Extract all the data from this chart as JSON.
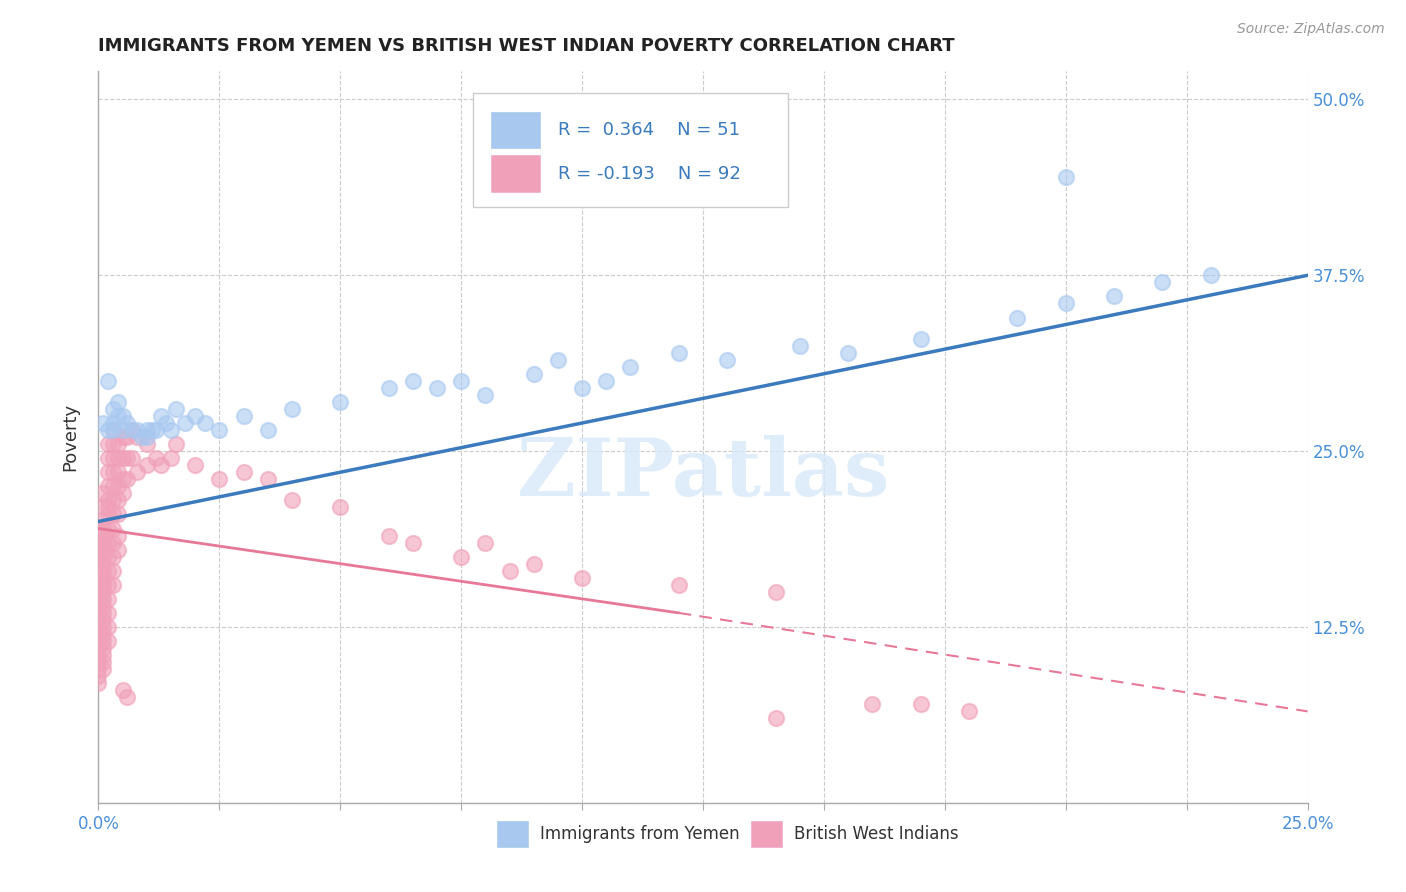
{
  "title": "IMMIGRANTS FROM YEMEN VS BRITISH WEST INDIAN POVERTY CORRELATION CHART",
  "source": "Source: ZipAtlas.com",
  "ylabel": "Poverty",
  "xlim": [
    0.0,
    0.25
  ],
  "ylim": [
    0.0,
    0.52
  ],
  "xticks": [
    0.0,
    0.025,
    0.05,
    0.075,
    0.1,
    0.125,
    0.15,
    0.175,
    0.2,
    0.225,
    0.25
  ],
  "xticklabels": [
    "0.0%",
    "",
    "",
    "",
    "",
    "",
    "",
    "",
    "",
    "",
    "25.0%"
  ],
  "ytick_positions": [
    0.0,
    0.125,
    0.25,
    0.375,
    0.5
  ],
  "yticklabels": [
    "",
    "12.5%",
    "25.0%",
    "37.5%",
    "50.0%"
  ],
  "color_yemen": "#A8C8F0",
  "color_bwi": "#F0A0B8",
  "color_line_yemen": "#3A7ABD",
  "color_line_bwi": "#E87898",
  "watermark": "ZIPatlas",
  "yemen_scatter": [
    [
      0.001,
      0.27
    ],
    [
      0.002,
      0.265
    ],
    [
      0.002,
      0.3
    ],
    [
      0.003,
      0.265
    ],
    [
      0.003,
      0.28
    ],
    [
      0.003,
      0.27
    ],
    [
      0.004,
      0.285
    ],
    [
      0.004,
      0.275
    ],
    [
      0.005,
      0.275
    ],
    [
      0.005,
      0.265
    ],
    [
      0.006,
      0.27
    ],
    [
      0.007,
      0.265
    ],
    [
      0.008,
      0.265
    ],
    [
      0.009,
      0.26
    ],
    [
      0.01,
      0.265
    ],
    [
      0.01,
      0.26
    ],
    [
      0.011,
      0.265
    ],
    [
      0.012,
      0.265
    ],
    [
      0.013,
      0.275
    ],
    [
      0.014,
      0.27
    ],
    [
      0.015,
      0.265
    ],
    [
      0.016,
      0.28
    ],
    [
      0.018,
      0.27
    ],
    [
      0.02,
      0.275
    ],
    [
      0.022,
      0.27
    ],
    [
      0.025,
      0.265
    ],
    [
      0.03,
      0.275
    ],
    [
      0.035,
      0.265
    ],
    [
      0.04,
      0.28
    ],
    [
      0.05,
      0.285
    ],
    [
      0.06,
      0.295
    ],
    [
      0.065,
      0.3
    ],
    [
      0.07,
      0.295
    ],
    [
      0.075,
      0.3
    ],
    [
      0.08,
      0.29
    ],
    [
      0.09,
      0.305
    ],
    [
      0.095,
      0.315
    ],
    [
      0.1,
      0.295
    ],
    [
      0.105,
      0.3
    ],
    [
      0.11,
      0.31
    ],
    [
      0.12,
      0.32
    ],
    [
      0.13,
      0.315
    ],
    [
      0.145,
      0.325
    ],
    [
      0.155,
      0.32
    ],
    [
      0.17,
      0.33
    ],
    [
      0.19,
      0.345
    ],
    [
      0.2,
      0.355
    ],
    [
      0.21,
      0.36
    ],
    [
      0.22,
      0.37
    ],
    [
      0.23,
      0.375
    ],
    [
      0.2,
      0.445
    ]
  ],
  "bwi_scatter": [
    [
      0.0,
      0.195
    ],
    [
      0.0,
      0.185
    ],
    [
      0.0,
      0.175
    ],
    [
      0.0,
      0.165
    ],
    [
      0.0,
      0.16
    ],
    [
      0.0,
      0.155
    ],
    [
      0.0,
      0.15
    ],
    [
      0.0,
      0.145
    ],
    [
      0.0,
      0.14
    ],
    [
      0.0,
      0.135
    ],
    [
      0.0,
      0.13
    ],
    [
      0.0,
      0.125
    ],
    [
      0.0,
      0.12
    ],
    [
      0.0,
      0.115
    ],
    [
      0.0,
      0.11
    ],
    [
      0.0,
      0.105
    ],
    [
      0.0,
      0.1
    ],
    [
      0.0,
      0.095
    ],
    [
      0.0,
      0.09
    ],
    [
      0.0,
      0.085
    ],
    [
      0.001,
      0.22
    ],
    [
      0.001,
      0.21
    ],
    [
      0.001,
      0.2
    ],
    [
      0.001,
      0.195
    ],
    [
      0.001,
      0.19
    ],
    [
      0.001,
      0.185
    ],
    [
      0.001,
      0.18
    ],
    [
      0.001,
      0.175
    ],
    [
      0.001,
      0.17
    ],
    [
      0.001,
      0.165
    ],
    [
      0.001,
      0.16
    ],
    [
      0.001,
      0.155
    ],
    [
      0.001,
      0.15
    ],
    [
      0.001,
      0.145
    ],
    [
      0.001,
      0.14
    ],
    [
      0.001,
      0.135
    ],
    [
      0.001,
      0.13
    ],
    [
      0.001,
      0.125
    ],
    [
      0.001,
      0.12
    ],
    [
      0.001,
      0.115
    ],
    [
      0.001,
      0.11
    ],
    [
      0.001,
      0.105
    ],
    [
      0.001,
      0.1
    ],
    [
      0.001,
      0.095
    ],
    [
      0.002,
      0.255
    ],
    [
      0.002,
      0.245
    ],
    [
      0.002,
      0.235
    ],
    [
      0.002,
      0.225
    ],
    [
      0.002,
      0.215
    ],
    [
      0.002,
      0.21
    ],
    [
      0.002,
      0.205
    ],
    [
      0.002,
      0.195
    ],
    [
      0.002,
      0.185
    ],
    [
      0.002,
      0.175
    ],
    [
      0.002,
      0.165
    ],
    [
      0.002,
      0.155
    ],
    [
      0.002,
      0.145
    ],
    [
      0.002,
      0.135
    ],
    [
      0.002,
      0.125
    ],
    [
      0.002,
      0.115
    ],
    [
      0.003,
      0.265
    ],
    [
      0.003,
      0.255
    ],
    [
      0.003,
      0.245
    ],
    [
      0.003,
      0.235
    ],
    [
      0.003,
      0.225
    ],
    [
      0.003,
      0.215
    ],
    [
      0.003,
      0.205
    ],
    [
      0.003,
      0.195
    ],
    [
      0.003,
      0.185
    ],
    [
      0.003,
      0.175
    ],
    [
      0.003,
      0.165
    ],
    [
      0.003,
      0.155
    ],
    [
      0.004,
      0.255
    ],
    [
      0.004,
      0.245
    ],
    [
      0.004,
      0.235
    ],
    [
      0.004,
      0.225
    ],
    [
      0.004,
      0.215
    ],
    [
      0.004,
      0.205
    ],
    [
      0.004,
      0.19
    ],
    [
      0.004,
      0.18
    ],
    [
      0.005,
      0.26
    ],
    [
      0.005,
      0.245
    ],
    [
      0.005,
      0.23
    ],
    [
      0.005,
      0.22
    ],
    [
      0.006,
      0.26
    ],
    [
      0.006,
      0.245
    ],
    [
      0.006,
      0.23
    ],
    [
      0.007,
      0.265
    ],
    [
      0.007,
      0.245
    ],
    [
      0.008,
      0.26
    ],
    [
      0.008,
      0.235
    ],
    [
      0.01,
      0.255
    ],
    [
      0.01,
      0.24
    ],
    [
      0.012,
      0.245
    ],
    [
      0.013,
      0.24
    ],
    [
      0.015,
      0.245
    ],
    [
      0.016,
      0.255
    ],
    [
      0.02,
      0.24
    ],
    [
      0.025,
      0.23
    ],
    [
      0.03,
      0.235
    ],
    [
      0.035,
      0.23
    ],
    [
      0.04,
      0.215
    ],
    [
      0.05,
      0.21
    ],
    [
      0.06,
      0.19
    ],
    [
      0.065,
      0.185
    ],
    [
      0.075,
      0.175
    ],
    [
      0.08,
      0.185
    ],
    [
      0.085,
      0.165
    ],
    [
      0.09,
      0.17
    ],
    [
      0.1,
      0.16
    ],
    [
      0.12,
      0.155
    ],
    [
      0.14,
      0.15
    ],
    [
      0.16,
      0.07
    ],
    [
      0.17,
      0.07
    ],
    [
      0.18,
      0.065
    ],
    [
      0.005,
      0.08
    ],
    [
      0.006,
      0.075
    ],
    [
      0.14,
      0.06
    ]
  ],
  "yemen_line": [
    [
      0.0,
      0.2
    ],
    [
      0.25,
      0.375
    ]
  ],
  "bwi_line_solid": [
    [
      0.0,
      0.195
    ],
    [
      0.12,
      0.135
    ]
  ],
  "bwi_line_dashed": [
    [
      0.12,
      0.135
    ],
    [
      0.25,
      0.065
    ]
  ]
}
